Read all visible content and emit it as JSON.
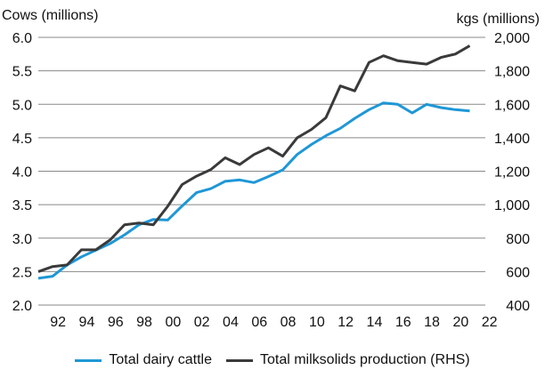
{
  "chart_data": {
    "type": "line",
    "left_axis_label": "Cows (millions)",
    "right_axis_label": "kgs (millions)",
    "left_ylim": [
      2.0,
      6.0
    ],
    "right_ylim": [
      400,
      2000
    ],
    "left_ticks": [
      "2.0",
      "2.5",
      "3.0",
      "3.5",
      "4.0",
      "4.5",
      "5.0",
      "5.5",
      "6.0"
    ],
    "right_ticks": [
      "400",
      "600",
      "800",
      "1,000",
      "1,200",
      "1,400",
      "1,600",
      "1,800",
      "2,000"
    ],
    "x_ticks": [
      "92",
      "94",
      "96",
      "98",
      "00",
      "02",
      "04",
      "06",
      "08",
      "10",
      "12",
      "14",
      "16",
      "18",
      "20",
      "22"
    ],
    "x": [
      1991,
      1992,
      1993,
      1994,
      1995,
      1996,
      1997,
      1998,
      1999,
      2000,
      2001,
      2002,
      2003,
      2004,
      2005,
      2006,
      2007,
      2008,
      2009,
      2010,
      2011,
      2012,
      2013,
      2014,
      2015,
      2016,
      2017,
      2018,
      2019,
      2020,
      2021
    ],
    "series": [
      {
        "name": "Total dairy cattle",
        "axis": "left",
        "color": "#1F97D6",
        "values": [
          2.4,
          2.43,
          2.6,
          2.72,
          2.82,
          2.92,
          3.05,
          3.2,
          3.28,
          3.27,
          3.48,
          3.68,
          3.74,
          3.85,
          3.87,
          3.83,
          3.92,
          4.02,
          4.25,
          4.4,
          4.53,
          4.64,
          4.79,
          4.92,
          5.02,
          5.0,
          4.87,
          5.0,
          4.95,
          4.92,
          4.9
        ]
      },
      {
        "name": "Total milksolids production (RHS)",
        "axis": "right",
        "color": "#3A3A3A",
        "values": [
          600,
          630,
          640,
          730,
          730,
          790,
          880,
          890,
          880,
          990,
          1120,
          1170,
          1210,
          1280,
          1240,
          1300,
          1340,
          1290,
          1400,
          1450,
          1520,
          1710,
          1680,
          1850,
          1890,
          1860,
          1850,
          1840,
          1880,
          1900,
          1950
        ]
      }
    ]
  }
}
